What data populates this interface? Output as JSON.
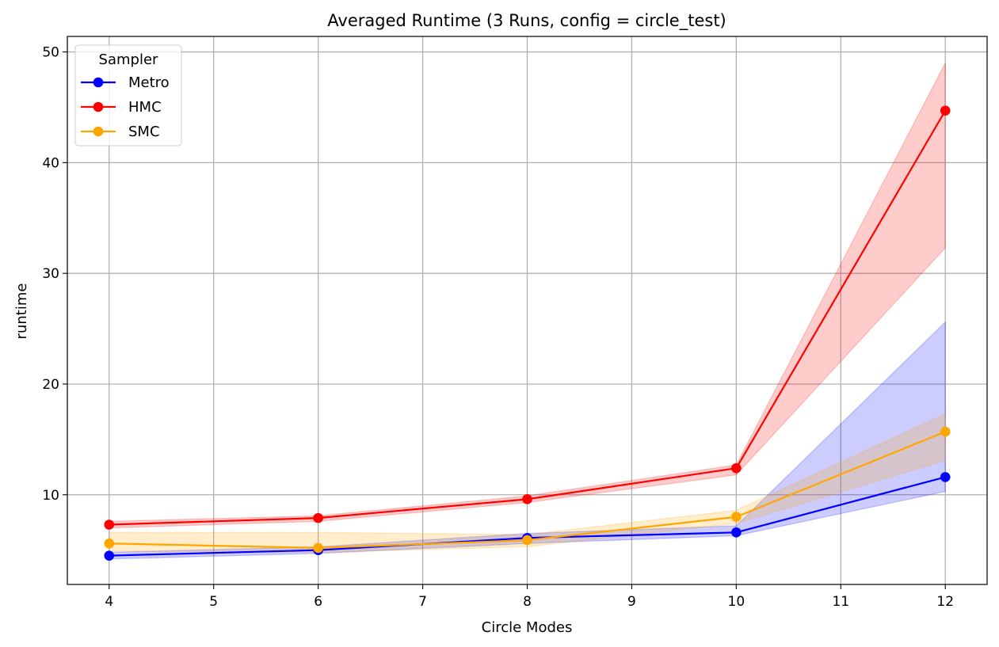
{
  "chart_data": {
    "type": "line",
    "title": "Averaged Runtime (3 Runs, config = circle_test)",
    "xlabel": "Circle Modes",
    "ylabel": "runtime",
    "x": [
      4,
      6,
      8,
      10,
      12
    ],
    "xlim": [
      3.6,
      12.4
    ],
    "ylim": [
      1.9,
      51.4
    ],
    "xticks": [
      "4",
      "5",
      "6",
      "7",
      "8",
      "9",
      "10",
      "11",
      "12"
    ],
    "yticks": [
      "10",
      "20",
      "30",
      "40",
      "50"
    ],
    "grid": true,
    "legend": {
      "title": "Sampler",
      "placement": "top-left"
    },
    "series": [
      {
        "name": "Metro",
        "color": "#0000ff",
        "values": [
          4.5,
          5.0,
          6.1,
          6.6,
          11.6
        ],
        "lower": [
          4.2,
          4.7,
          5.6,
          6.3,
          10.3
        ],
        "upper": [
          4.8,
          5.3,
          6.5,
          7.2,
          25.6
        ]
      },
      {
        "name": "HMC",
        "color": "#ff0000",
        "values": [
          7.3,
          7.9,
          9.6,
          12.4,
          44.7
        ],
        "lower": [
          7.0,
          7.6,
          9.3,
          11.8,
          32.3
        ],
        "upper": [
          7.6,
          8.1,
          9.9,
          12.7,
          49.0
        ]
      },
      {
        "name": "SMC",
        "color": "#ffa500",
        "values": [
          5.6,
          5.2,
          5.9,
          8.0,
          15.7
        ],
        "lower": [
          4.9,
          4.8,
          5.3,
          7.4,
          13.1
        ],
        "upper": [
          6.6,
          6.6,
          6.4,
          8.6,
          17.3
        ]
      }
    ]
  }
}
